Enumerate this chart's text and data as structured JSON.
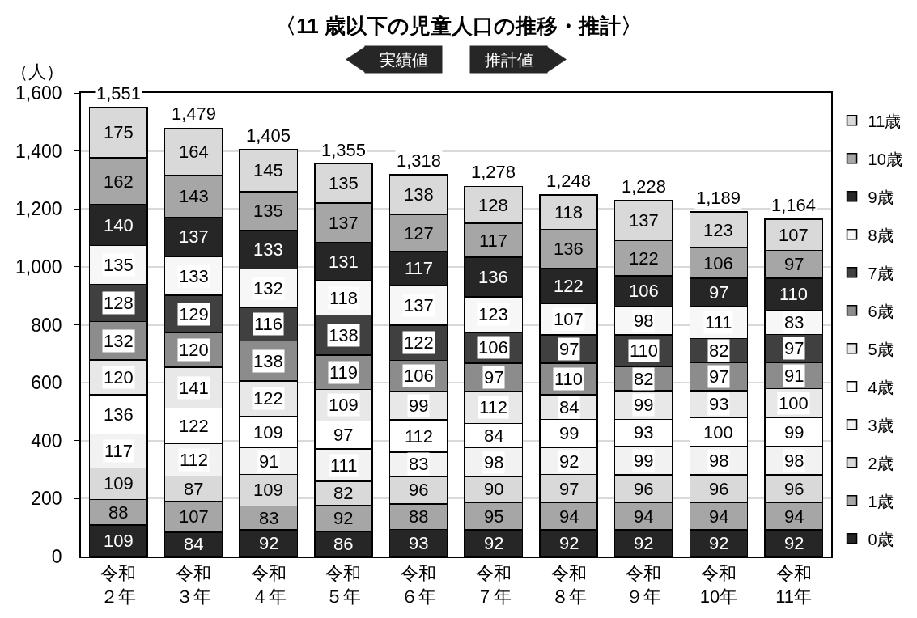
{
  "chart_data": {
    "type": "bar",
    "title": "〈11 歳以下の児童人口の推移・推計〉",
    "ylabel": "（人）",
    "categories": [
      "令和２年",
      "令和３年",
      "令和４年",
      "令和５年",
      "令和６年",
      "令和７年",
      "令和８年",
      "令和９年",
      "令和10年",
      "令和11年"
    ],
    "stacked": true,
    "series": [
      {
        "name": "0歳",
        "color": "#262626",
        "values": [
          109,
          84,
          92,
          86,
          93,
          92,
          92,
          92,
          92,
          92
        ]
      },
      {
        "name": "1歳",
        "color": "#a6a6a6",
        "values": [
          88,
          107,
          83,
          92,
          88,
          95,
          94,
          94,
          94,
          94
        ]
      },
      {
        "name": "2歳",
        "color": "#d9d9d9",
        "values": [
          109,
          87,
          109,
          82,
          96,
          90,
          97,
          96,
          96,
          96
        ]
      },
      {
        "name": "3歳",
        "color": "#f2f2f2",
        "values": [
          117,
          112,
          91,
          111,
          83,
          98,
          92,
          99,
          98,
          98
        ]
      },
      {
        "name": "4歳",
        "color": "#ffffff",
        "values": [
          136,
          122,
          109,
          97,
          112,
          84,
          99,
          93,
          100,
          99
        ]
      },
      {
        "name": "5歳",
        "color": "#e8e8e8",
        "values": [
          120,
          141,
          122,
          109,
          99,
          112,
          84,
          99,
          93,
          100
        ]
      },
      {
        "name": "6歳",
        "color": "#8c8c8c",
        "values": [
          132,
          120,
          138,
          119,
          106,
          97,
          110,
          82,
          97,
          91
        ]
      },
      {
        "name": "7歳",
        "color": "#404040",
        "values": [
          128,
          129,
          116,
          138,
          122,
          106,
          97,
          110,
          82,
          97
        ]
      },
      {
        "name": "8歳",
        "color": "#f7f7f7",
        "values": [
          135,
          133,
          132,
          118,
          137,
          123,
          107,
          98,
          111,
          83
        ]
      },
      {
        "name": "9歳",
        "color": "#262626",
        "values": [
          140,
          137,
          133,
          131,
          117,
          136,
          122,
          106,
          97,
          110
        ]
      },
      {
        "name": "10歳",
        "color": "#a6a6a6",
        "values": [
          162,
          143,
          135,
          137,
          127,
          117,
          136,
          122,
          106,
          97
        ]
      },
      {
        "name": "11歳",
        "color": "#d9d9d9",
        "values": [
          175,
          164,
          145,
          135,
          138,
          128,
          118,
          137,
          123,
          107
        ]
      }
    ],
    "totals": [
      "1,551",
      "1,479",
      "1,405",
      "1,355",
      "1,318",
      "1,278",
      "1,248",
      "1,228",
      "1,189",
      "1,164"
    ],
    "data_labels": true,
    "ylim": [
      0,
      1600
    ],
    "yticks": [
      0,
      200,
      400,
      600,
      800,
      {
        "value": 1000,
        "label": "1,000"
      },
      {
        "value": 1200,
        "label": "1,200"
      },
      {
        "value": 1400,
        "label": "1,400"
      },
      {
        "value": 1600,
        "label": "1,600"
      }
    ],
    "ref_lines": [
      {
        "axis": "x",
        "value": "令和６年",
        "color": "#000000",
        "line_style": "dashed"
      }
    ],
    "annotations": [
      "実績値",
      "推計値"
    ],
    "grid": "y",
    "legend": "right"
  }
}
